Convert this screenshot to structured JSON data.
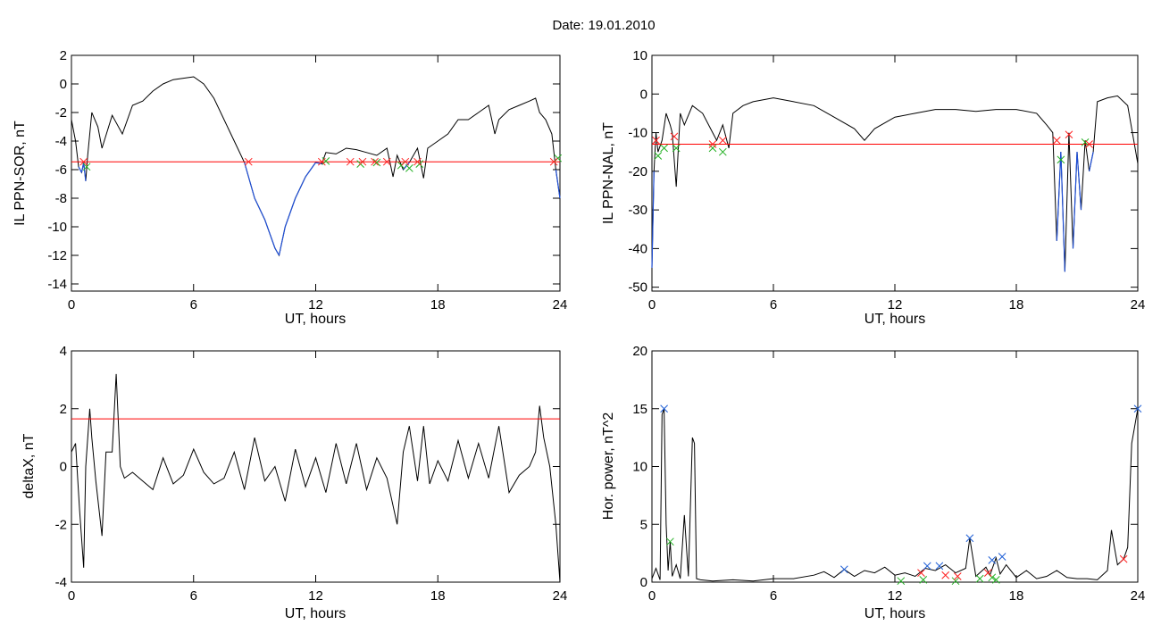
{
  "figure": {
    "title": "Date:  19.01.2010"
  },
  "chart_data": [
    {
      "type": "line",
      "ylabel": "IL PPN-SOR, nT",
      "xlabel": "UT, hours",
      "xlim": [
        0,
        24
      ],
      "ylim": [
        -14.5,
        2
      ],
      "x_ticks": [
        0,
        6,
        12,
        18,
        24
      ],
      "y_ticks": [
        2,
        0,
        -2,
        -4,
        -6,
        -8,
        -10,
        -12,
        -14
      ],
      "threshold": {
        "value": -5.45,
        "color": "#ff0000"
      },
      "highlight_color": "#1f4fd6",
      "series": [
        {
          "x": [
            0,
            0.2,
            0.35,
            0.5,
            0.6,
            0.7,
            0.8,
            1,
            1.3,
            1.5,
            2,
            2.5,
            3,
            3.5,
            4,
            4.5,
            5,
            5.5,
            6,
            6.5,
            7,
            7.5,
            8,
            8.5,
            9,
            9.5,
            10,
            10.2,
            10.5,
            11,
            11.5,
            12,
            12.3,
            12.5,
            13,
            13.5,
            14,
            14.5,
            15,
            15.5,
            15.8,
            16,
            16.3,
            16.6,
            17,
            17.3,
            17.5,
            18,
            18.5,
            19,
            19.5,
            20,
            20.5,
            20.8,
            21,
            21.5,
            22,
            22.5,
            22.8,
            23,
            23.3,
            23.6,
            23.8,
            24
          ],
          "y": [
            -2.5,
            -4,
            -5.8,
            -6.2,
            -5.5,
            -6.8,
            -5,
            -2,
            -3,
            -4.5,
            -2.2,
            -3.5,
            -1.5,
            -1.2,
            -0.5,
            0,
            0.3,
            0.4,
            0.5,
            0,
            -1,
            -2.5,
            -4,
            -5.5,
            -8,
            -9.5,
            -11.5,
            -12,
            -10,
            -8,
            -6.5,
            -5.5,
            -5.6,
            -4.8,
            -4.9,
            -4.5,
            -4.6,
            -4.8,
            -5,
            -4.5,
            -6.5,
            -5,
            -6,
            -5.5,
            -4.5,
            -6.6,
            -4.5,
            -4,
            -3.5,
            -2.5,
            -2.5,
            -2,
            -1.5,
            -3.5,
            -2.5,
            -1.8,
            -1.5,
            -1.2,
            -1,
            -2,
            -2.5,
            -3.5,
            -6,
            -8
          ]
        }
      ],
      "markers_red": [
        [
          0.6,
          -5.45
        ],
        [
          8.7,
          -5.45
        ],
        [
          12.3,
          -5.45
        ],
        [
          13.7,
          -5.45
        ],
        [
          14.3,
          -5.45
        ],
        [
          14.9,
          -5.45
        ],
        [
          15.5,
          -5.45
        ],
        [
          16.4,
          -5.45
        ],
        [
          17,
          -5.45
        ],
        [
          23.7,
          -5.45
        ]
      ],
      "markers_green": [
        [
          0.75,
          -5.8
        ],
        [
          12.5,
          -5.4
        ],
        [
          14.2,
          -5.6
        ],
        [
          15,
          -5.5
        ],
        [
          16.2,
          -5.7
        ],
        [
          16.6,
          -5.9
        ],
        [
          17.1,
          -5.6
        ],
        [
          23.9,
          -5.2
        ]
      ]
    },
    {
      "type": "line",
      "ylabel": "IL PPN-NAL, nT",
      "xlabel": "UT, hours",
      "xlim": [
        0,
        24
      ],
      "ylim": [
        -51,
        10
      ],
      "x_ticks": [
        0,
        6,
        12,
        18,
        24
      ],
      "y_ticks": [
        10,
        0,
        -10,
        -20,
        -30,
        -40,
        -50
      ],
      "threshold": {
        "value": -13,
        "color": "#ff0000"
      },
      "highlight_color": "#1f4fd6",
      "series": [
        {
          "x": [
            0,
            0.1,
            0.2,
            0.3,
            0.5,
            0.7,
            0.9,
            1,
            1.2,
            1.4,
            1.6,
            2,
            2.5,
            3,
            3.2,
            3.5,
            3.8,
            4,
            4.5,
            5,
            6,
            7,
            8,
            9,
            10,
            10.5,
            11,
            12,
            13,
            14,
            15,
            16,
            17,
            18,
            19,
            19.5,
            19.8,
            20,
            20.2,
            20.4,
            20.6,
            20.8,
            21,
            21.2,
            21.4,
            21.6,
            21.8,
            22,
            22.5,
            23,
            23.5,
            24
          ],
          "y": [
            -45,
            -20,
            -10,
            -15,
            -12,
            -5,
            -8,
            -10,
            -24,
            -5,
            -8,
            -3,
            -5,
            -10,
            -12,
            -8,
            -14,
            -5,
            -3,
            -2,
            -1,
            -2,
            -3,
            -6,
            -9,
            -12,
            -9,
            -6,
            -5,
            -4,
            -4,
            -4.5,
            -4,
            -4,
            -5,
            -8,
            -10,
            -38,
            -15,
            -46,
            -10,
            -40,
            -15,
            -30,
            -12,
            -20,
            -15,
            -2,
            -1,
            -0.5,
            -3,
            -18
          ]
        }
      ],
      "markers_red": [
        [
          0.2,
          -12
        ],
        [
          1.1,
          -11
        ],
        [
          3,
          -13
        ],
        [
          3.5,
          -12
        ],
        [
          20,
          -12
        ],
        [
          20.6,
          -10.5
        ],
        [
          21.6,
          -13
        ]
      ],
      "markers_green": [
        [
          0.3,
          -16
        ],
        [
          0.6,
          -14
        ],
        [
          1.2,
          -14
        ],
        [
          3,
          -14
        ],
        [
          3.5,
          -15
        ],
        [
          20.2,
          -17
        ],
        [
          21.4,
          -12.5
        ]
      ]
    },
    {
      "type": "line",
      "ylabel": "deltaX, nT",
      "xlabel": "UT, hours",
      "xlim": [
        0,
        24
      ],
      "ylim": [
        -4,
        4
      ],
      "x_ticks": [
        0,
        6,
        12,
        18,
        24
      ],
      "y_ticks": [
        4,
        2,
        0,
        -2,
        -4
      ],
      "threshold": {
        "value": 1.65,
        "color": "#ff0000"
      },
      "series": [
        {
          "x": [
            0,
            0.2,
            0.4,
            0.6,
            0.7,
            0.9,
            1,
            1.2,
            1.5,
            1.7,
            2,
            2.2,
            2.4,
            2.6,
            3,
            3.5,
            4,
            4.5,
            5,
            5.5,
            6,
            6.5,
            7,
            7.5,
            8,
            8.5,
            9,
            9.5,
            10,
            10.5,
            11,
            11.5,
            12,
            12.5,
            13,
            13.5,
            14,
            14.5,
            15,
            15.5,
            16,
            16.3,
            16.6,
            17,
            17.3,
            17.6,
            18,
            18.5,
            19,
            19.5,
            20,
            20.5,
            21,
            21.5,
            22,
            22.5,
            22.8,
            23,
            23.2,
            23.5,
            23.8,
            24
          ],
          "y": [
            0.5,
            0.8,
            -1.5,
            -3.5,
            0,
            2,
            1,
            -0.5,
            -2.4,
            0.5,
            0.5,
            3.2,
            0,
            -0.4,
            -0.2,
            -0.5,
            -0.8,
            0.3,
            -0.6,
            -0.3,
            0.6,
            -0.2,
            -0.6,
            -0.4,
            0.5,
            -0.8,
            1,
            -0.5,
            0,
            -1.2,
            0.6,
            -0.7,
            0.3,
            -0.9,
            0.8,
            -0.6,
            0.8,
            -0.8,
            0.3,
            -0.4,
            -2,
            0.5,
            1.4,
            -0.5,
            1.4,
            -0.6,
            0.2,
            -0.5,
            0.9,
            -0.4,
            0.8,
            -0.4,
            1.4,
            -0.9,
            -0.3,
            0,
            0.5,
            2.1,
            1,
            0,
            -2,
            -4
          ]
        }
      ],
      "markers_red": [],
      "markers_green": []
    },
    {
      "type": "line",
      "ylabel": "Hor. power, nT^2",
      "xlabel": "UT, hours",
      "xlim": [
        0,
        24
      ],
      "ylim": [
        0,
        20
      ],
      "x_ticks": [
        0,
        6,
        12,
        18,
        24
      ],
      "y_ticks": [
        20,
        15,
        10,
        5,
        0
      ],
      "threshold": null,
      "series": [
        {
          "x": [
            0,
            0.2,
            0.4,
            0.5,
            0.6,
            0.7,
            0.8,
            0.9,
            1,
            1.2,
            1.4,
            1.6,
            1.8,
            2,
            2.1,
            2.2,
            2.4,
            3,
            4,
            5,
            6,
            7,
            8,
            8.5,
            9,
            9.5,
            10,
            10.5,
            11,
            11.5,
            12,
            12.5,
            13,
            13.5,
            14,
            14.5,
            15,
            15.5,
            15.7,
            16,
            16.5,
            16.7,
            17,
            17.2,
            17.5,
            18,
            18.5,
            19,
            19.5,
            20,
            20.5,
            21,
            21.5,
            22,
            22.5,
            22.7,
            23,
            23.3,
            23.5,
            23.7,
            24
          ],
          "y": [
            0.3,
            1.2,
            0.2,
            14.5,
            15,
            5,
            1,
            3.5,
            0.5,
            1.5,
            0.3,
            5.8,
            0.5,
            12.5,
            12,
            0.3,
            0.2,
            0.1,
            0.2,
            0.1,
            0.3,
            0.3,
            0.6,
            0.9,
            0.4,
            1.1,
            0.5,
            1,
            0.8,
            1.3,
            0.6,
            0.8,
            0.5,
            1.2,
            1,
            1.5,
            0.8,
            1.2,
            3.8,
            0.5,
            1.3,
            0.6,
            2.1,
            0.7,
            1.5,
            0.4,
            1,
            0.3,
            0.5,
            1,
            0.4,
            0.3,
            0.3,
            0.2,
            1,
            4.5,
            1.5,
            2,
            3,
            12,
            15
          ]
        }
      ],
      "markers_blue": [
        [
          0.6,
          15
        ],
        [
          9.5,
          1.1
        ],
        [
          13.6,
          1.4
        ],
        [
          14.2,
          1.4
        ],
        [
          15.7,
          3.8
        ],
        [
          16.8,
          1.9
        ],
        [
          17.3,
          2.2
        ],
        [
          24,
          15
        ]
      ],
      "markers_red": [
        [
          13.3,
          0.8
        ],
        [
          14.5,
          0.6
        ],
        [
          15.1,
          0.5
        ],
        [
          16.6,
          0.8
        ],
        [
          23.3,
          2
        ]
      ],
      "markers_green": [
        [
          0.9,
          3.5
        ],
        [
          12.3,
          0.1
        ],
        [
          13.4,
          0.2
        ],
        [
          15,
          0.1
        ],
        [
          16.2,
          0.3
        ],
        [
          16.8,
          0.4
        ],
        [
          17,
          0.2
        ]
      ]
    }
  ]
}
